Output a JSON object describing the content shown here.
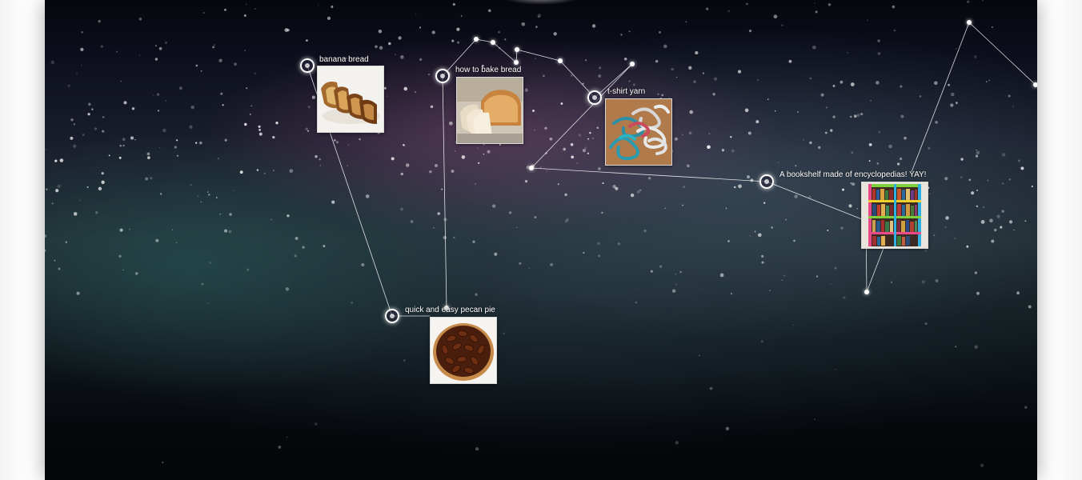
{
  "pins": [
    {
      "id": "banana-bread",
      "title": "banana bread",
      "image": "banana-bread-image"
    },
    {
      "id": "how-to-bake-bread",
      "title": "how to bake bread",
      "image": "bread-loaf-image"
    },
    {
      "id": "t-shirt-yarn",
      "title": "t-shirt yarn",
      "image": "yarn-image"
    },
    {
      "id": "bookshelf",
      "title": "A bookshelf made of encyclopedias! YAY!",
      "image": "bookshelf-image"
    },
    {
      "id": "pecan-pie",
      "title": "quick and easy pecan pie",
      "image": "pecan-pie-image"
    }
  ],
  "colors": {
    "star": "#ffffff",
    "line": "#ffffff",
    "title_text": "#ffffff"
  }
}
